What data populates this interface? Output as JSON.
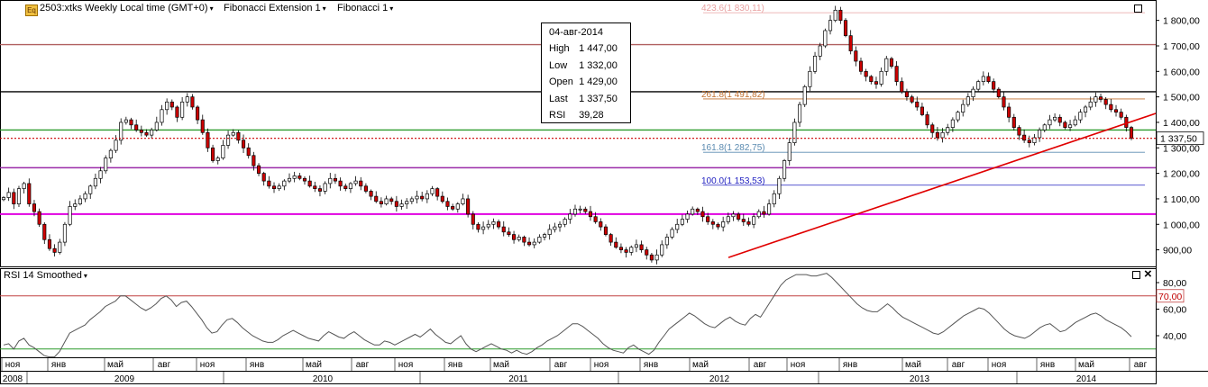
{
  "header": {
    "symbol_icon": "Eq",
    "symbol_title": "2503:xtks Weekly Local time (GMT+0)",
    "indicator1": "Fibonacci Extension 1",
    "indicator2": "Fibonacci 1",
    "menu_caret": "▾"
  },
  "tooltip": {
    "date": "04-авг-2014",
    "rows": [
      {
        "label": "High",
        "value": "1 447,00"
      },
      {
        "label": "Low",
        "value": "1 332,00"
      },
      {
        "label": "Open",
        "value": "1 429,00"
      },
      {
        "label": "Last",
        "value": "1 337,50"
      },
      {
        "label": "RSI",
        "value": "39,28"
      }
    ]
  },
  "last_price_label": "1 337,50",
  "rsi_panel": {
    "title": "RSI 14 Smoothed",
    "levels": [
      30,
      70
    ],
    "level_label_70": "70,00",
    "ticks": [
      "80,00",
      "60,00",
      "40,00"
    ],
    "close_glyph": "×"
  },
  "colors": {
    "up_candle": "#ffffff",
    "down_candle": "#cc0000",
    "trendline": "#e00000",
    "rsi_line": "#555555",
    "level_brown": "#b06060",
    "level_black": "#000000",
    "level_green": "#2a9a2a",
    "level_purple": "#9a2aa8",
    "level_magenta": "#e000e0",
    "last_price": "#cc0000"
  },
  "chart_data": {
    "type": "candlestick",
    "title": "2503:xtks Weekly",
    "y_ticks": [
      "1 800,00",
      "1 700,00",
      "1 600,00",
      "1 500,00",
      "1 400,00",
      "1 300,00",
      "1 200,00",
      "1 100,00",
      "1 000,00",
      "900,00"
    ],
    "y_tick_values": [
      1800,
      1700,
      1600,
      1500,
      1400,
      1300,
      1200,
      1100,
      1000,
      900
    ],
    "ylim": [
      835,
      1880
    ],
    "x_months": [
      "ноя",
      "янв",
      "май",
      "авг",
      "ноя",
      "янв",
      "май",
      "авг",
      "ноя",
      "янв",
      "май",
      "авг",
      "ноя",
      "янв",
      "май",
      "авг",
      "ноя",
      "янв",
      "май",
      "авг",
      "ноя",
      "янв",
      "май",
      "авг"
    ],
    "x_years": [
      "2008",
      "2009",
      "2010",
      "2011",
      "2012",
      "2013",
      "2014"
    ],
    "horizontal_levels": [
      {
        "value": 1705,
        "color": "brown"
      },
      {
        "value": 1520,
        "color": "black"
      },
      {
        "value": 1370,
        "color": "green"
      },
      {
        "value": 1222,
        "color": "purple"
      },
      {
        "value": 1040,
        "color": "magenta"
      }
    ],
    "fibonacci_extension": [
      {
        "label": "423.6(1 830,11)",
        "value": 1830.11
      },
      {
        "label": "261.8(1 491,82)",
        "value": 1491.82
      },
      {
        "label": "161.8(1 282,75)",
        "value": 1282.75
      },
      {
        "label": "100.0(1 153,53)",
        "value": 1153.53
      }
    ],
    "last_price": 1337.5,
    "trendline": {
      "from": {
        "date": "2012-06",
        "value": 870
      },
      "to": {
        "date": "2014-08",
        "value": 1435
      }
    },
    "closes": [
      1105,
      1125,
      1080,
      1140,
      1160,
      1080,
      1050,
      1000,
      940,
      905,
      890,
      930,
      1000,
      1070,
      1080,
      1100,
      1120,
      1150,
      1180,
      1210,
      1260,
      1290,
      1330,
      1400,
      1410,
      1390,
      1370,
      1360,
      1350,
      1370,
      1400,
      1450,
      1480,
      1460,
      1420,
      1480,
      1500,
      1460,
      1410,
      1360,
      1300,
      1250,
      1260,
      1310,
      1350,
      1360,
      1330,
      1300,
      1270,
      1230,
      1200,
      1170,
      1150,
      1140,
      1150,
      1170,
      1180,
      1190,
      1180,
      1170,
      1150,
      1140,
      1130,
      1160,
      1180,
      1170,
      1150,
      1140,
      1160,
      1170,
      1150,
      1130,
      1110,
      1090,
      1080,
      1100,
      1090,
      1070,
      1080,
      1090,
      1100,
      1110,
      1100,
      1120,
      1140,
      1110,
      1090,
      1070,
      1060,
      1080,
      1100,
      1040,
      1000,
      980,
      990,
      1000,
      1010,
      990,
      970,
      960,
      940,
      950,
      930,
      920,
      930,
      950,
      960,
      980,
      990,
      1000,
      1020,
      1040,
      1060,
      1060,
      1050,
      1030,
      1010,
      990,
      960,
      930,
      910,
      900,
      890,
      910,
      920,
      900,
      880,
      860,
      880,
      920,
      950,
      980,
      1000,
      1020,
      1040,
      1060,
      1050,
      1030,
      1010,
      1000,
      990,
      1010,
      1030,
      1040,
      1020,
      1010,
      1000,
      1030,
      1050,
      1040,
      1080,
      1120,
      1180,
      1250,
      1320,
      1400,
      1470,
      1540,
      1600,
      1660,
      1700,
      1760,
      1800,
      1840,
      1800,
      1740,
      1680,
      1640,
      1600,
      1580,
      1560,
      1550,
      1600,
      1650,
      1620,
      1560,
      1520,
      1500,
      1480,
      1460,
      1430,
      1390,
      1360,
      1340,
      1360,
      1380,
      1410,
      1440,
      1470,
      1500,
      1530,
      1560,
      1580,
      1560,
      1530,
      1500,
      1460,
      1420,
      1380,
      1350,
      1330,
      1320,
      1340,
      1370,
      1390,
      1410,
      1420,
      1400,
      1380,
      1390,
      1410,
      1440,
      1460,
      1480,
      1500,
      1490,
      1470,
      1450,
      1440,
      1420,
      1380,
      1337.5
    ],
    "rsi": [
      33,
      34,
      30,
      36,
      38,
      33,
      31,
      28,
      25,
      24,
      24,
      28,
      35,
      42,
      44,
      46,
      48,
      52,
      55,
      58,
      62,
      64,
      66,
      70,
      70,
      67,
      64,
      61,
      59,
      61,
      64,
      68,
      70,
      67,
      62,
      65,
      66,
      62,
      57,
      52,
      46,
      42,
      43,
      48,
      52,
      53,
      50,
      46,
      43,
      40,
      38,
      36,
      35,
      35,
      37,
      40,
      42,
      44,
      42,
      40,
      38,
      37,
      36,
      40,
      43,
      41,
      39,
      38,
      41,
      43,
      40,
      37,
      35,
      33,
      33,
      36,
      35,
      33,
      35,
      37,
      39,
      41,
      39,
      42,
      45,
      41,
      38,
      35,
      34,
      37,
      40,
      34,
      30,
      28,
      30,
      32,
      34,
      32,
      30,
      29,
      27,
      29,
      27,
      26,
      28,
      31,
      33,
      36,
      38,
      40,
      43,
      46,
      49,
      49,
      47,
      44,
      41,
      38,
      34,
      31,
      29,
      28,
      27,
      31,
      33,
      30,
      28,
      26,
      29,
      35,
      40,
      45,
      48,
      51,
      54,
      57,
      55,
      52,
      49,
      47,
      46,
      49,
      52,
      54,
      51,
      49,
      48,
      53,
      56,
      54,
      60,
      66,
      72,
      78,
      82,
      84,
      86,
      86,
      86,
      85,
      85,
      86,
      87,
      84,
      80,
      76,
      72,
      68,
      64,
      61,
      59,
      58,
      58,
      61,
      64,
      61,
      57,
      54,
      52,
      50,
      48,
      46,
      44,
      42,
      41,
      43,
      46,
      49,
      52,
      55,
      57,
      59,
      61,
      60,
      57,
      53,
      49,
      45,
      42,
      40,
      39,
      38,
      40,
      43,
      46,
      48,
      49,
      46,
      43,
      44,
      47,
      50,
      52,
      54,
      56,
      57,
      55,
      52,
      50,
      48,
      46,
      43,
      39.28
    ]
  }
}
